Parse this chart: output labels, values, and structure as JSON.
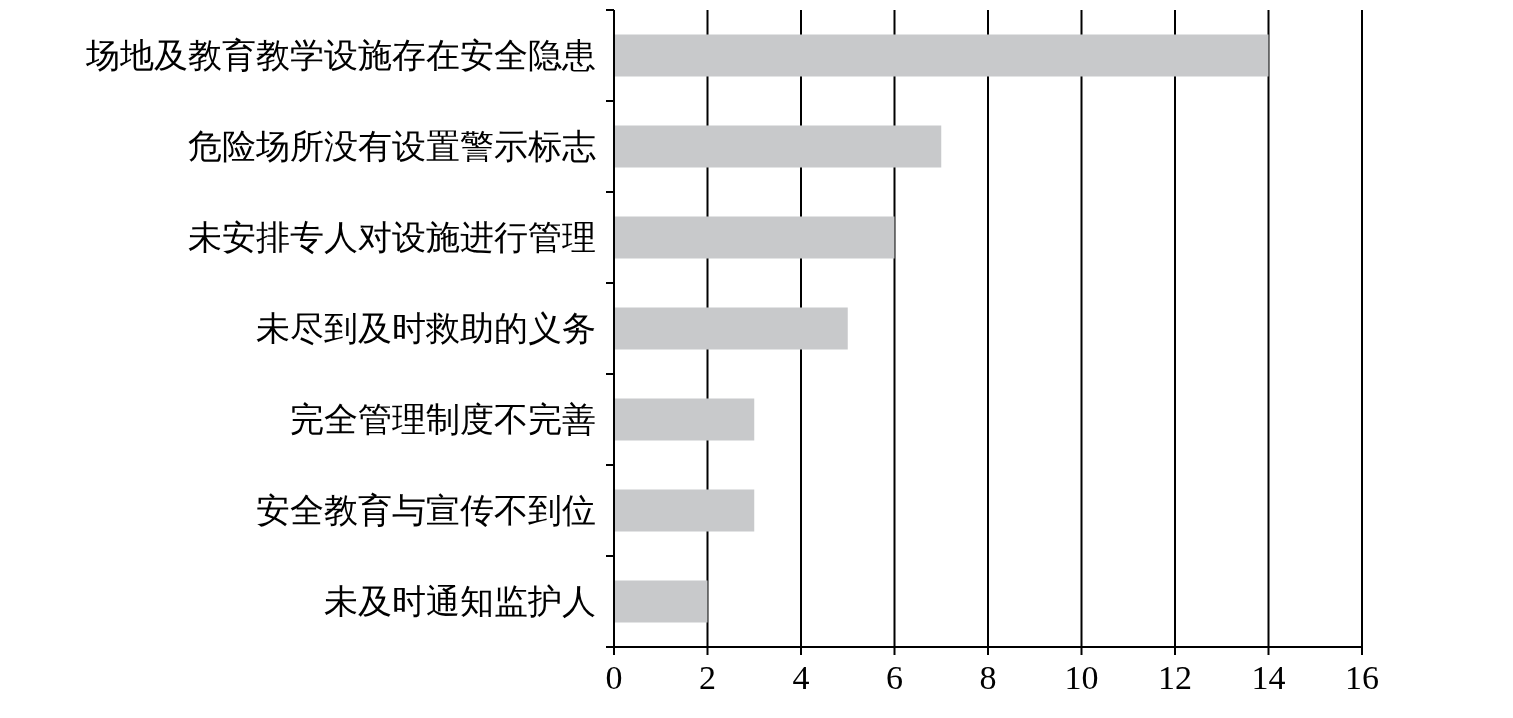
{
  "chart_data": {
    "type": "bar",
    "orientation": "horizontal",
    "categories": [
      "场地及教育教学设施存在安全隐患",
      "危险场所没有设置警示标志",
      "未安排专人对设施进行管理",
      "未尽到及时救助的义务",
      "完全管理制度不完善",
      "安全教育与宣传不到位",
      "未及时通知监护人"
    ],
    "values": [
      14,
      7,
      6,
      5,
      3,
      3,
      2
    ],
    "color": "#c8c9cb",
    "xlim": [
      0,
      16
    ],
    "xticks": [
      0,
      2,
      4,
      6,
      8,
      10,
      12,
      14,
      16
    ],
    "grid": "x"
  }
}
